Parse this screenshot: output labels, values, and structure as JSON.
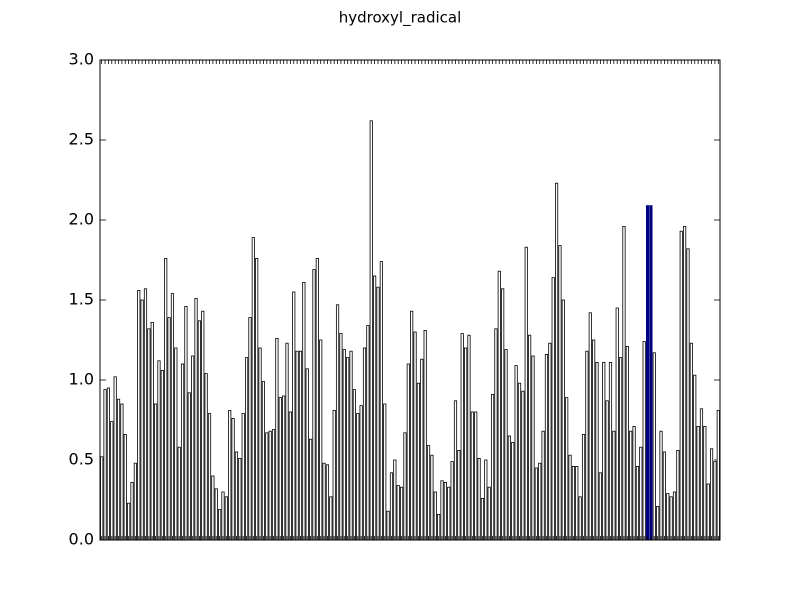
{
  "chart_data": {
    "type": "bar",
    "title": "hydroxyl_radical",
    "categories": [
      null,
      null,
      null,
      null,
      null,
      null,
      null,
      null,
      null,
      null,
      null,
      null,
      null,
      null,
      null,
      null,
      null,
      null,
      null,
      null,
      null,
      null,
      null,
      null,
      null,
      null,
      null,
      null,
      null,
      null,
      null,
      null,
      null,
      null,
      null,
      null,
      null,
      null,
      null,
      null,
      null,
      null,
      null,
      null,
      null,
      null,
      null,
      null,
      null,
      null,
      null,
      null,
      null,
      null,
      null,
      null,
      null,
      null,
      null,
      null,
      null,
      null,
      null,
      null,
      null,
      null,
      null,
      null,
      null,
      null,
      null,
      null,
      null,
      null,
      null,
      null,
      null,
      null,
      null,
      null,
      null,
      null,
      null,
      null,
      null,
      null,
      null,
      null,
      null,
      null,
      null,
      null,
      null,
      null,
      null,
      null,
      null,
      null,
      null,
      null,
      null,
      null,
      null,
      null,
      null,
      null,
      null,
      null,
      null,
      null,
      null,
      null,
      null,
      null,
      null,
      null,
      null,
      null,
      null,
      null,
      null,
      null,
      null,
      null,
      null,
      null,
      null,
      null,
      null,
      null,
      null,
      null,
      null,
      null,
      null,
      null,
      null,
      null,
      null,
      null,
      null,
      null,
      null,
      null,
      null,
      null,
      null,
      null,
      null,
      null,
      null,
      null,
      null,
      null,
      null,
      null,
      null,
      null,
      null,
      null,
      null,
      null,
      null,
      null,
      null,
      null,
      null,
      null,
      null,
      null,
      null,
      null,
      null,
      null,
      null,
      null,
      null,
      null,
      null,
      null,
      null,
      null,
      null,
      null
    ],
    "values": [
      0.52,
      0.94,
      0.95,
      0.74,
      1.02,
      0.88,
      0.85,
      0.66,
      0.23,
      0.36,
      0.48,
      1.56,
      1.5,
      1.57,
      1.32,
      1.36,
      0.85,
      1.12,
      1.06,
      1.76,
      1.39,
      1.54,
      1.2,
      0.58,
      1.1,
      1.46,
      0.92,
      1.15,
      1.51,
      1.37,
      1.43,
      1.04,
      0.79,
      0.4,
      0.32,
      0.19,
      0.3,
      0.27,
      0.81,
      0.76,
      0.55,
      0.51,
      0.79,
      1.14,
      1.39,
      1.89,
      1.76,
      1.2,
      0.99,
      0.67,
      0.68,
      0.69,
      1.26,
      0.89,
      0.9,
      1.23,
      0.8,
      1.55,
      1.18,
      1.18,
      1.61,
      1.07,
      0.63,
      1.69,
      1.76,
      1.25,
      0.48,
      0.47,
      0.27,
      0.81,
      1.47,
      1.29,
      1.19,
      1.14,
      1.18,
      0.94,
      0.79,
      0.84,
      1.2,
      1.34,
      2.62,
      1.65,
      1.58,
      1.74,
      0.85,
      0.18,
      0.42,
      0.5,
      0.34,
      0.33,
      0.67,
      1.1,
      1.43,
      1.3,
      0.98,
      1.13,
      1.31,
      0.59,
      0.53,
      0.3,
      0.16,
      0.37,
      0.36,
      0.33,
      0.49,
      0.87,
      0.56,
      1.29,
      1.2,
      1.28,
      0.8,
      0.8,
      0.51,
      0.26,
      0.5,
      0.33,
      0.91,
      1.32,
      1.68,
      1.57,
      1.19,
      0.65,
      0.61,
      1.09,
      0.98,
      0.93,
      1.83,
      1.28,
      1.15,
      0.45,
      0.48,
      0.68,
      1.16,
      1.23,
      1.64,
      2.23,
      1.84,
      1.5,
      0.89,
      0.53,
      0.46,
      0.46,
      0.27,
      0.66,
      1.18,
      1.42,
      1.25,
      1.11,
      0.42,
      1.11,
      0.87,
      1.11,
      0.68,
      1.45,
      1.14,
      1.96,
      1.21,
      0.68,
      0.71,
      0.46,
      0.58,
      1.24,
      2.09,
      2.09,
      1.17,
      0.21,
      0.68,
      0.55,
      0.29,
      0.27,
      0.3,
      0.56,
      1.93,
      1.96,
      1.82,
      1.23,
      1.03,
      0.71,
      0.82,
      0.71,
      0.35,
      0.57,
      0.49,
      0.81
    ],
    "color": "#ffffff",
    "edgecolor": "#000000",
    "highlight": [
      162,
      163
    ],
    "highlight_color": "#000080",
    "ylim": [
      0,
      3
    ],
    "yticks": [
      {
        "value": 0,
        "label": "0.0"
      },
      0.5,
      {
        "value": 1,
        "label": "1.0"
      },
      1.5,
      {
        "value": 2,
        "label": "2.0"
      },
      2.5,
      {
        "value": 3,
        "label": "3.0"
      }
    ]
  }
}
